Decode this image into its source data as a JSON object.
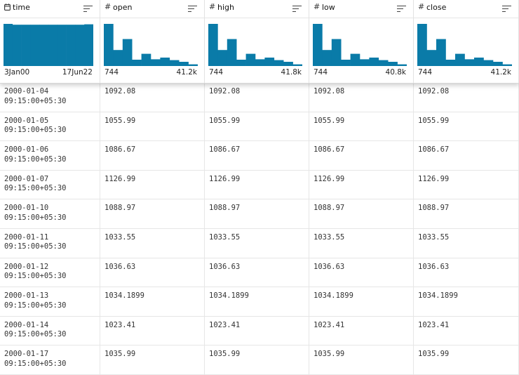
{
  "columns": [
    {
      "name": "time",
      "type": "date",
      "type_icon": "calendar-icon",
      "min_label": "3Jan00",
      "max_label": "17Jun22",
      "histogram": [
        1,
        0.98,
        0.98,
        0.98,
        0.98,
        0.98,
        0.98,
        0.98,
        0.98,
        0.99
      ]
    },
    {
      "name": "open",
      "type": "number",
      "type_icon": "hash-icon",
      "min_label": "744",
      "max_label": "41.2k",
      "histogram": [
        1,
        0.38,
        0.64,
        0.15,
        0.29,
        0.16,
        0.2,
        0.14,
        0.1,
        0.04
      ]
    },
    {
      "name": "high",
      "type": "number",
      "type_icon": "hash-icon",
      "min_label": "744",
      "max_label": "41.8k",
      "histogram": [
        1,
        0.38,
        0.64,
        0.15,
        0.29,
        0.16,
        0.2,
        0.14,
        0.1,
        0.04
      ]
    },
    {
      "name": "low",
      "type": "number",
      "type_icon": "hash-icon",
      "min_label": "744",
      "max_label": "40.8k",
      "histogram": [
        1,
        0.38,
        0.64,
        0.15,
        0.29,
        0.16,
        0.2,
        0.14,
        0.1,
        0.04
      ]
    },
    {
      "name": "close",
      "type": "number",
      "type_icon": "hash-icon",
      "min_label": "744",
      "max_label": "41.2k",
      "histogram": [
        1,
        0.38,
        0.64,
        0.15,
        0.29,
        0.16,
        0.2,
        0.14,
        0.1,
        0.04
      ]
    }
  ],
  "rows": [
    {
      "time": "2000-01-04\n09:15:00+05:30",
      "open": "1092.08",
      "high": "1092.08",
      "low": "1092.08",
      "close": "1092.08"
    },
    {
      "time": "2000-01-05\n09:15:00+05:30",
      "open": "1055.99",
      "high": "1055.99",
      "low": "1055.99",
      "close": "1055.99"
    },
    {
      "time": "2000-01-06\n09:15:00+05:30",
      "open": "1086.67",
      "high": "1086.67",
      "low": "1086.67",
      "close": "1086.67"
    },
    {
      "time": "2000-01-07\n09:15:00+05:30",
      "open": "1126.99",
      "high": "1126.99",
      "low": "1126.99",
      "close": "1126.99"
    },
    {
      "time": "2000-01-10\n09:15:00+05:30",
      "open": "1088.97",
      "high": "1088.97",
      "low": "1088.97",
      "close": "1088.97"
    },
    {
      "time": "2000-01-11\n09:15:00+05:30",
      "open": "1033.55",
      "high": "1033.55",
      "low": "1033.55",
      "close": "1033.55"
    },
    {
      "time": "2000-01-12\n09:15:00+05:30",
      "open": "1036.63",
      "high": "1036.63",
      "low": "1036.63",
      "close": "1036.63"
    },
    {
      "time": "2000-01-13\n09:15:00+05:30",
      "open": "1034.1899",
      "high": "1034.1899",
      "low": "1034.1899",
      "close": "1034.1899"
    },
    {
      "time": "2000-01-14\n09:15:00+05:30",
      "open": "1023.41",
      "high": "1023.41",
      "low": "1023.41",
      "close": "1023.41"
    },
    {
      "time": "2000-01-17\n09:15:00+05:30",
      "open": "1035.99",
      "high": "1035.99",
      "low": "1035.99",
      "close": "1035.99"
    }
  ],
  "colors": {
    "bar": "#0a7ba8",
    "grid_line": "#e6e6e6"
  }
}
